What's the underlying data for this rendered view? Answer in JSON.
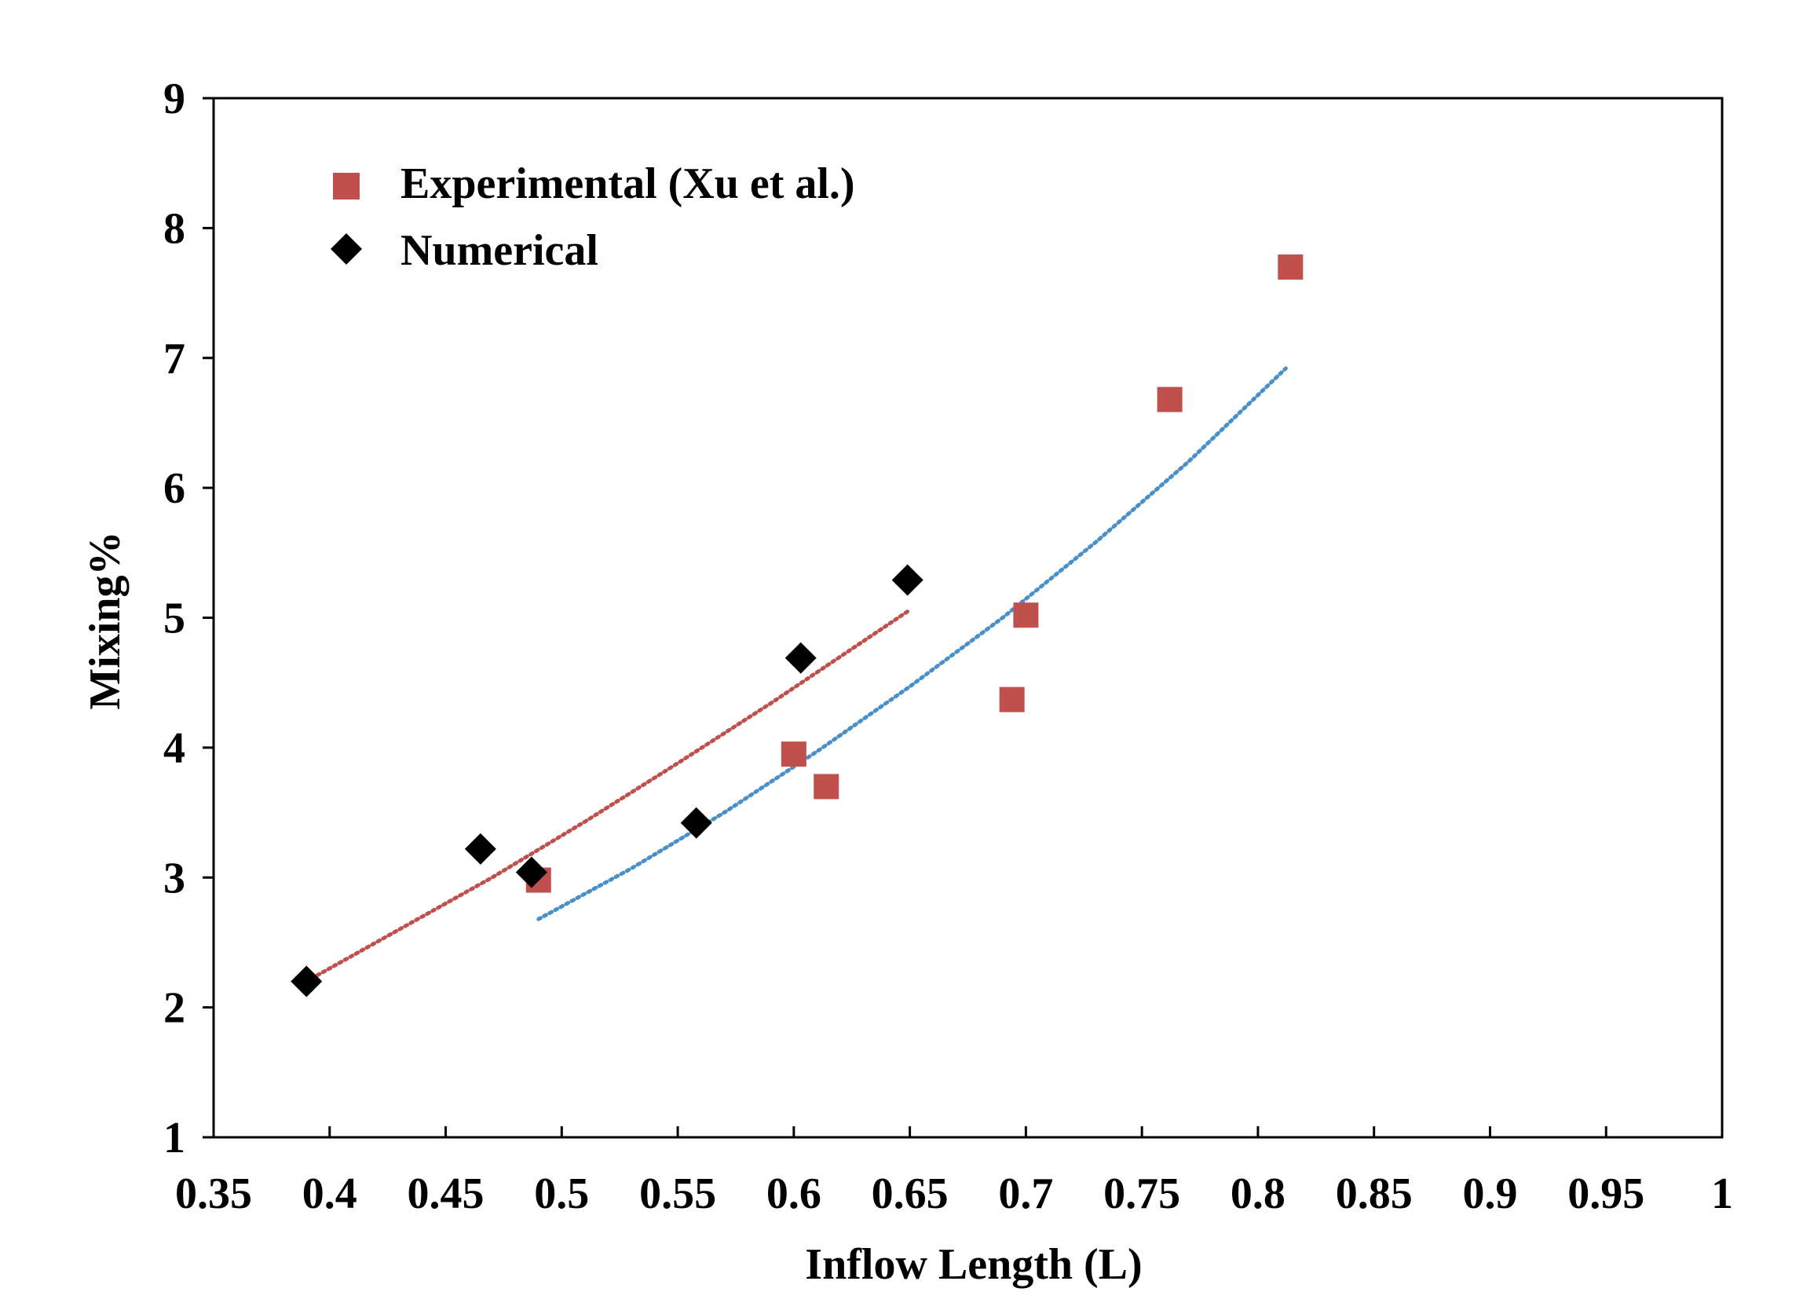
{
  "chart_data": {
    "type": "scatter",
    "title": "",
    "xlabel": "Inflow Length (L)",
    "ylabel": "Mixing%",
    "xlim": [
      0.35,
      1.0
    ],
    "ylim": [
      1,
      9
    ],
    "xticks": [
      0.35,
      0.4,
      0.45,
      0.5,
      0.55,
      0.6,
      0.65,
      0.7,
      0.75,
      0.8,
      0.85,
      0.9,
      0.95,
      1
    ],
    "xtick_labels": [
      "0.35",
      "0.4",
      "0.45",
      "0.5",
      "0.55",
      "0.6",
      "0.65",
      "0.7",
      "0.75",
      "0.8",
      "0.85",
      "0.9",
      "0.95",
      "1"
    ],
    "yticks": [
      1,
      2,
      3,
      4,
      5,
      6,
      7,
      8,
      9
    ],
    "ytick_labels": [
      "1",
      "2",
      "3",
      "4",
      "5",
      "6",
      "7",
      "8",
      "9"
    ],
    "grid": false,
    "legend_position": "top-left",
    "series": [
      {
        "name": "Experimental (Xu et al.)",
        "marker": "square",
        "color": "#c0504d",
        "x": [
          0.49,
          0.6,
          0.614,
          0.694,
          0.7,
          0.762,
          0.814
        ],
        "y": [
          2.98,
          3.95,
          3.7,
          4.37,
          5.02,
          6.68,
          7.7
        ],
        "trendline": {
          "style": "dotted",
          "color": "#4a90c8",
          "x": [
            0.49,
            0.53,
            0.57,
            0.61,
            0.65,
            0.69,
            0.73,
            0.77,
            0.812
          ],
          "y": [
            2.68,
            3.07,
            3.5,
            3.97,
            4.47,
            5.0,
            5.58,
            6.2,
            6.92
          ]
        }
      },
      {
        "name": "Numerical",
        "marker": "diamond",
        "color": "#000000",
        "x": [
          0.39,
          0.465,
          0.487,
          0.558,
          0.603,
          0.649
        ],
        "y": [
          2.2,
          3.22,
          3.04,
          3.42,
          4.69,
          5.29
        ],
        "trendline": {
          "style": "dotted",
          "color": "#c0504d",
          "x": [
            0.39,
            0.43,
            0.47,
            0.51,
            0.55,
            0.59,
            0.63,
            0.65
          ],
          "y": [
            2.2,
            2.6,
            3.0,
            3.43,
            3.88,
            4.34,
            4.82,
            5.06
          ]
        }
      }
    ]
  }
}
